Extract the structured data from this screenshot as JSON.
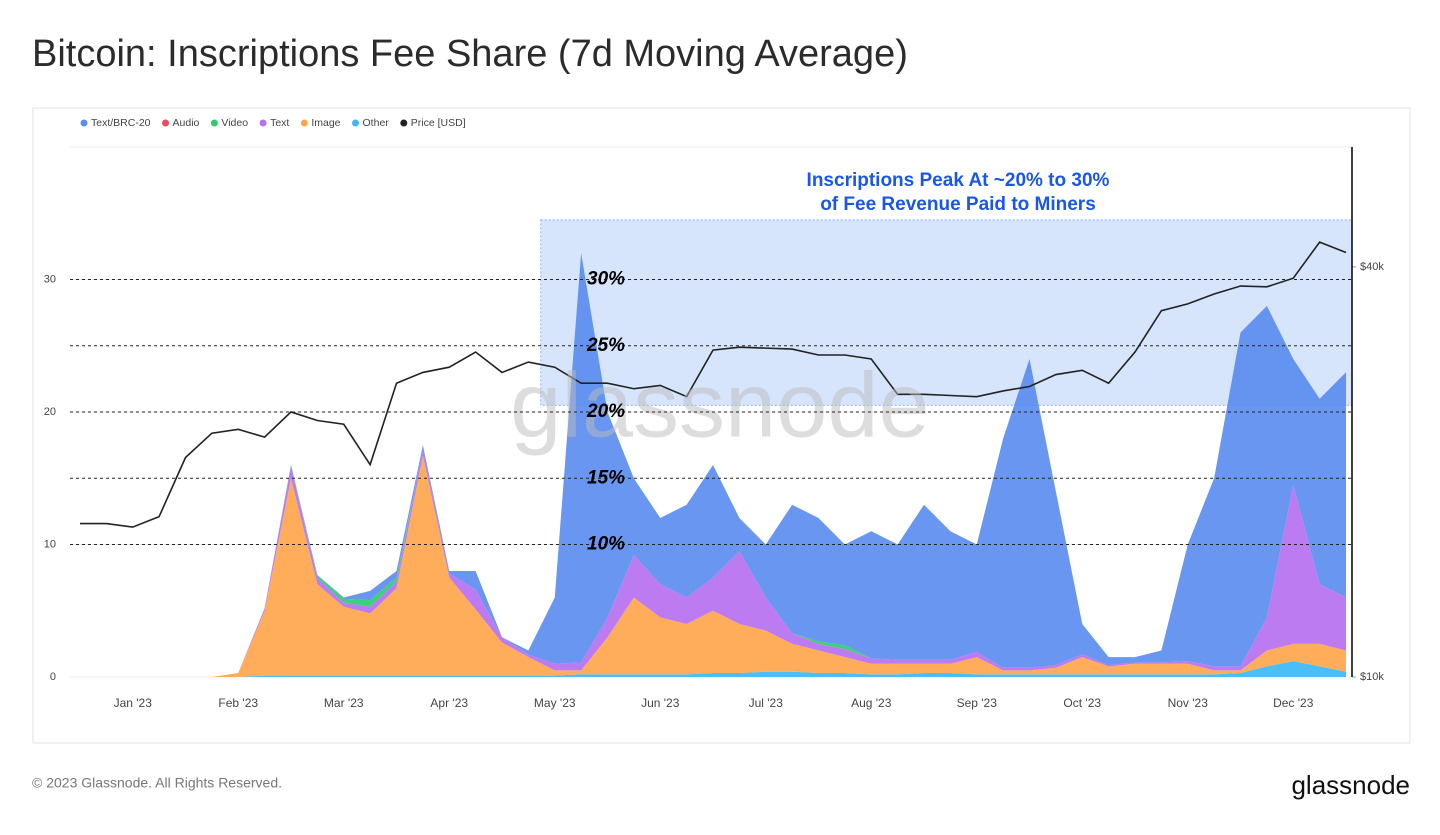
{
  "chart_data": {
    "type": "stacked_area",
    "title": "Bitcoin: Inscriptions Fee Share (7d Moving Average)",
    "annotation": [
      "Inscriptions Peak At ~20% to 30%",
      "of Fee Revenue Paid to Miners"
    ],
    "watermark": "glassnode",
    "footer": "© 2023 Glassnode. All Rights Reserved.",
    "logo": "glassnode",
    "categories": [
      null,
      null,
      "Jan '23",
      null,
      null,
      null,
      "Feb '23",
      null,
      null,
      null,
      "Mar '23",
      null,
      null,
      null,
      "Apr '23",
      null,
      null,
      null,
      "May '23",
      null,
      null,
      null,
      "Jun '23",
      null,
      null,
      null,
      "Jul '23",
      null,
      null,
      null,
      "Aug '23",
      null,
      null,
      null,
      "Sep '23",
      null,
      null,
      null,
      "Oct '23",
      null,
      null,
      null,
      "Nov '23",
      null,
      null,
      null,
      "Dec '23",
      null,
      null
    ],
    "series": [
      {
        "name": "Text/BRC-20",
        "color": "#5b8def",
        "values": [
          0,
          0,
          0,
          0,
          0,
          0,
          0,
          0,
          0.2,
          0,
          0.1,
          0.7,
          0.5,
          0.3,
          0.2,
          1.4,
          0,
          0.3,
          5,
          30.9,
          15.5,
          5.8,
          5,
          7,
          8.5,
          2.5,
          4,
          9.7,
          9.3,
          7.6,
          9.6,
          8.7,
          11.7,
          9.7,
          8.1,
          17.3,
          23.3,
          13.1,
          2.3,
          0.6,
          0.4,
          0.9,
          8.8,
          14.2,
          25.2,
          23.5,
          9.5,
          14,
          17
        ]
      },
      {
        "name": "Audio",
        "color": "#f04b5c",
        "values": [
          0,
          0,
          0,
          0,
          0,
          0,
          0,
          0,
          0,
          0,
          0,
          0,
          0,
          0,
          0,
          0,
          0,
          0,
          0,
          0,
          0,
          0,
          0,
          0,
          0,
          0,
          0,
          0,
          0,
          0,
          0,
          0,
          0,
          0,
          0,
          0,
          0,
          0,
          0,
          0,
          0,
          0,
          0,
          0,
          0,
          0,
          0,
          0,
          0
        ]
      },
      {
        "name": "Video",
        "color": "#2ecc71",
        "values": [
          0,
          0,
          0,
          0,
          0,
          0,
          0,
          0,
          0,
          0.2,
          0.3,
          0.5,
          0.3,
          0,
          0,
          0,
          0,
          0,
          0,
          0,
          0,
          0,
          0,
          0,
          0,
          0,
          0,
          0,
          0.2,
          0.3,
          0,
          0,
          0,
          0,
          0,
          0,
          0,
          0,
          0,
          0,
          0,
          0,
          0,
          0,
          0,
          0,
          0,
          0,
          0
        ]
      },
      {
        "name": "Text",
        "color": "#b770f0",
        "values": [
          0,
          0,
          0,
          0,
          0,
          0,
          0,
          0.2,
          0.8,
          0.5,
          0.3,
          0.5,
          0.5,
          0.5,
          0.3,
          1.5,
          0.4,
          0.2,
          0.5,
          0.6,
          1.5,
          3.2,
          2.5,
          2,
          2.5,
          5.5,
          2.5,
          0.8,
          0.5,
          0.6,
          0.4,
          0.3,
          0.3,
          0.3,
          0.4,
          0.2,
          0.2,
          0.2,
          0.2,
          0.1,
          0.1,
          0.1,
          0.2,
          0.3,
          0.3,
          2.5,
          12,
          4.5,
          4
        ]
      },
      {
        "name": "Image",
        "color": "#ffa64d",
        "values": [
          0,
          0,
          0,
          0,
          0,
          0,
          0.3,
          4.9,
          14.9,
          6.9,
          5.2,
          4.7,
          6.6,
          16.6,
          7.4,
          5,
          2.5,
          1.4,
          0.4,
          0.3,
          2.8,
          5.8,
          4.3,
          3.8,
          4.7,
          3.7,
          3.1,
          2.1,
          1.7,
          1.2,
          0.8,
          0.8,
          0.7,
          0.7,
          1.3,
          0.3,
          0.3,
          0.5,
          1.3,
          0.6,
          0.8,
          0.8,
          0.8,
          0.3,
          0.2,
          1.2,
          1.3,
          1.7,
          1.6
        ]
      },
      {
        "name": "Other",
        "color": "#3bb8f5",
        "values": [
          0,
          0,
          0,
          0,
          0,
          0,
          0,
          0.1,
          0.1,
          0.1,
          0.1,
          0.1,
          0.1,
          0.1,
          0.1,
          0.1,
          0.1,
          0.1,
          0.1,
          0.2,
          0.2,
          0.2,
          0.2,
          0.2,
          0.3,
          0.3,
          0.4,
          0.4,
          0.3,
          0.3,
          0.2,
          0.2,
          0.3,
          0.3,
          0.2,
          0.2,
          0.2,
          0.2,
          0.2,
          0.2,
          0.2,
          0.2,
          0.2,
          0.2,
          0.3,
          0.8,
          1.2,
          0.8,
          0.4
        ]
      },
      {
        "name": "Price [USD]",
        "color": "#222222",
        "axis": "y2",
        "values": [
          16800,
          16800,
          16600,
          17200,
          21000,
          22800,
          23100,
          22500,
          24500,
          23800,
          23500,
          20500,
          27000,
          28000,
          28500,
          30000,
          28000,
          29000,
          28500,
          27000,
          27000,
          26500,
          26800,
          25800,
          30200,
          30500,
          30400,
          30300,
          29700,
          29700,
          29300,
          26000,
          26000,
          25900,
          25800,
          26300,
          26700,
          27800,
          28200,
          27000,
          30000,
          34500,
          35300,
          36500,
          37500,
          37400,
          38500,
          43500,
          42000
        ]
      }
    ],
    "ylim": [
      0,
      40
    ],
    "yticks": [
      0,
      10,
      20,
      30
    ],
    "y2lim": [
      10000,
      60000
    ],
    "y2log": true,
    "y2ticks": [
      {
        "value": 10000,
        "label": "$10k"
      },
      {
        "value": 40000,
        "label": "$40k"
      }
    ],
    "grid": true,
    "legend": "top-left",
    "reference_lines": [
      {
        "value": 30,
        "label": "30%"
      },
      {
        "value": 25,
        "label": "25%"
      },
      {
        "value": 20,
        "label": "20%"
      },
      {
        "value": 15,
        "label": "15%"
      },
      {
        "value": 10,
        "label": "10%"
      }
    ],
    "highlight": {
      "from": "May '23",
      "ylim": [
        20.5,
        34.5
      ],
      "color": "#c9dcfb"
    }
  }
}
